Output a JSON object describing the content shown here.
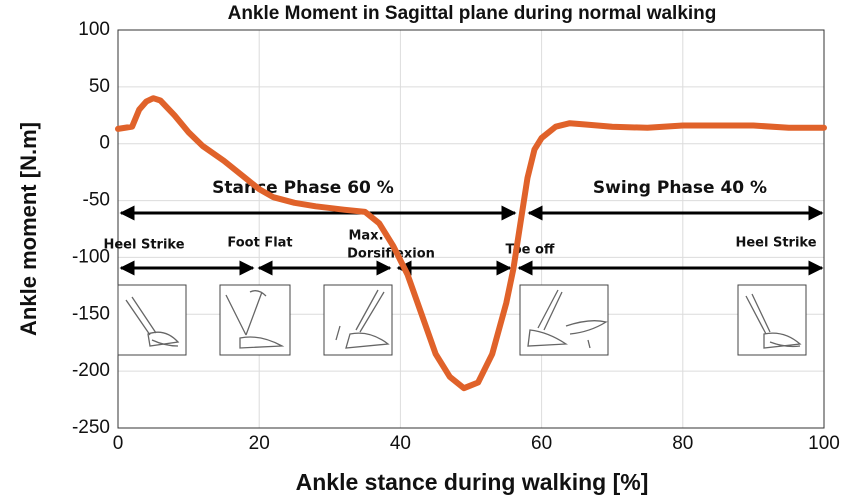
{
  "chart_data": {
    "type": "line",
    "title": "Ankle Moment in Sagittal plane during normal walking",
    "x_label": "Ankle stance during walking [%]",
    "y_label": "Ankle moment [N.m]",
    "xlim": [
      0,
      100
    ],
    "xticks": [
      0,
      20,
      40,
      60,
      80,
      100
    ],
    "ylim": [
      -250,
      100
    ],
    "yticks": [
      -250,
      -200,
      -150,
      -100,
      -50,
      0,
      50,
      100
    ],
    "grid": true,
    "series": [
      {
        "color": "#e0622a",
        "x": [
          0,
          2,
          3,
          4,
          5,
          6,
          8,
          10,
          12,
          15,
          18,
          20,
          22,
          25,
          28,
          32,
          35,
          37,
          39,
          41,
          43,
          45,
          47,
          49,
          51,
          53,
          55,
          56,
          57,
          58,
          59,
          60,
          62,
          64,
          66,
          70,
          75,
          80,
          85,
          90,
          95,
          100
        ],
        "values": [
          13,
          15,
          30,
          37,
          40,
          38,
          25,
          10,
          -2,
          -15,
          -30,
          -40,
          -47,
          -52,
          -55,
          -58,
          -60,
          -70,
          -90,
          -115,
          -150,
          -185,
          -205,
          -215,
          -210,
          -185,
          -140,
          -110,
          -70,
          -30,
          -5,
          5,
          15,
          18,
          17,
          15,
          14,
          16,
          16,
          16,
          14,
          14
        ]
      }
    ],
    "annotations": [
      "Stance Phase 60 %",
      "Swing Phase 40 %",
      "Heel Strike",
      "Foot Flat",
      "Max.",
      "Dorsiflexion",
      "Toe off",
      "Heel Strike"
    ]
  }
}
